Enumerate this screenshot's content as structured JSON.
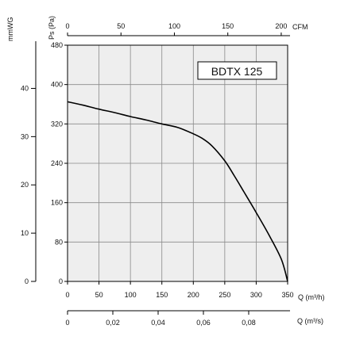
{
  "chart_data": {
    "type": "line",
    "title": "BDTX 125",
    "primary_x": {
      "label": "Q (m³/h)",
      "range": [
        0,
        350
      ],
      "ticks": [
        0,
        50,
        100,
        150,
        200,
        250,
        300,
        350
      ],
      "tick_labels": [
        "0",
        "50",
        "100",
        "150",
        "200",
        "250",
        "300",
        "350"
      ]
    },
    "top_x": {
      "label": "CFM",
      "range": [
        0,
        206
      ],
      "ticks": [
        0,
        50,
        100,
        150,
        200
      ],
      "tick_labels": [
        "0",
        "50",
        "100",
        "150",
        "200"
      ]
    },
    "bottom_x": {
      "label": "Q (m³/s)",
      "range": [
        0,
        0.0972
      ],
      "ticks": [
        0,
        0.02,
        0.04,
        0.06,
        0.08
      ],
      "tick_labels": [
        "0",
        "0,02",
        "0,04",
        "0,06",
        "0,08"
      ]
    },
    "primary_y": {
      "label": "Ps (Pa)",
      "range": [
        0,
        480
      ],
      "ticks": [
        0,
        80,
        160,
        240,
        320,
        400,
        480
      ],
      "tick_labels": [
        "0",
        "80",
        "160",
        "240",
        "320",
        "400",
        "480"
      ]
    },
    "secondary_y": {
      "label": "mmWG",
      "range": [
        0,
        48.95
      ],
      "ticks": [
        0,
        10,
        20,
        30,
        40
      ],
      "tick_labels": [
        "0",
        "10",
        "20",
        "30",
        "40"
      ]
    },
    "grid": true,
    "series": [
      {
        "x": [
          0,
          25,
          50,
          75,
          100,
          125,
          150,
          175,
          200,
          215,
          230,
          250,
          265,
          280,
          300,
          320,
          340,
          350
        ],
        "y": [
          365,
          358,
          350,
          343,
          335,
          328,
          320,
          313,
          300,
          290,
          275,
          245,
          215,
          183,
          140,
          95,
          45,
          0
        ]
      }
    ]
  },
  "colors": {
    "plot_background": "#eeeeee",
    "grid": "#8a8a8a",
    "curve": "#000000",
    "axis": "#000000"
  }
}
